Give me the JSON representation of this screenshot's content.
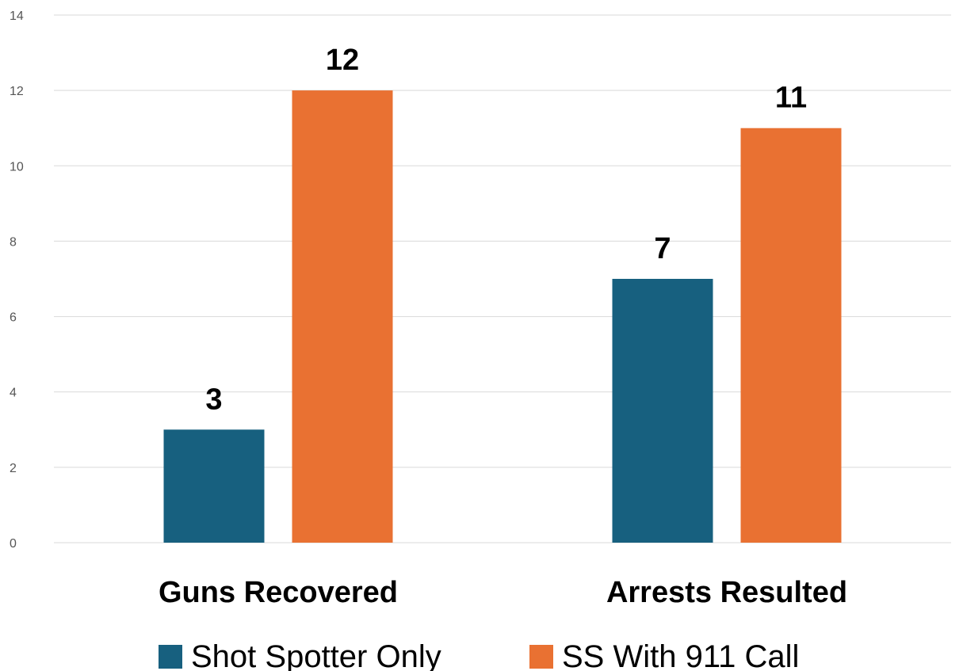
{
  "chart_data": {
    "type": "bar",
    "categories": [
      "Guns Recovered",
      "Arrests Resulted"
    ],
    "series": [
      {
        "name": "Shot Spotter Only",
        "values": [
          3,
          7
        ],
        "color": "#17607f"
      },
      {
        "name": "SS With 911 Call",
        "values": [
          12,
          11
        ],
        "color": "#e97132"
      }
    ],
    "ylim": [
      0,
      14
    ],
    "yticks": [
      "0",
      "2",
      "4",
      "6",
      "8",
      "10",
      "12",
      "14"
    ],
    "ytick_values": [
      0,
      2,
      4,
      6,
      8,
      10,
      12,
      14
    ],
    "grid": true,
    "legend_position": "bottom",
    "data_labels": true,
    "title": "",
    "xlabel": "",
    "ylabel": ""
  }
}
